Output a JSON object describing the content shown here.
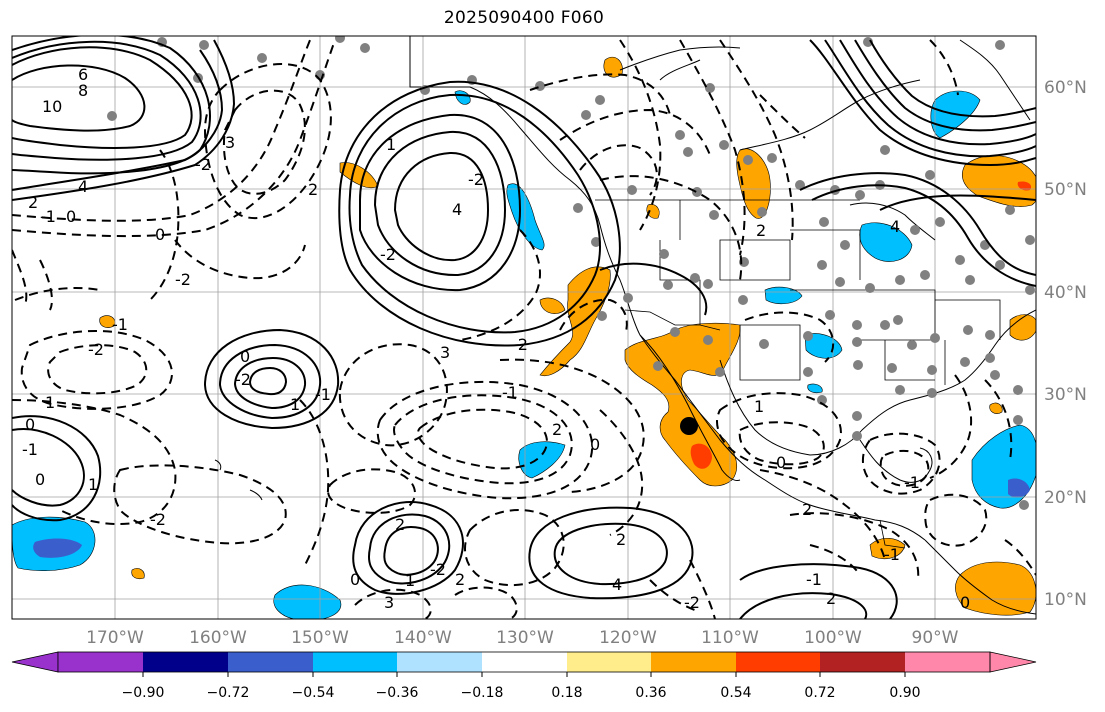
{
  "title": "2025090400 F060",
  "lat_labels": [
    "60°N",
    "50°N",
    "40°N",
    "30°N",
    "20°N",
    "10°N"
  ],
  "lon_labels": [
    "170°W",
    "160°W",
    "150°W",
    "140°W",
    "130°W",
    "120°W",
    "110°W",
    "100°W",
    "90°W"
  ],
  "colorbar": {
    "tick_labels": [
      "−0.90",
      "−0.72",
      "−0.54",
      "−0.36",
      "−0.18",
      "0.18",
      "0.36",
      "0.54",
      "0.72",
      "0.90"
    ],
    "colors": [
      "#9932cc",
      "#00008b",
      "#3a5fcd",
      "#00bfff",
      "#afe2ff",
      "#ffffff",
      "#ffec8b",
      "#ffa500",
      "#ff3d00",
      "#b22222",
      "#ff88aa"
    ]
  },
  "contour_labels": [
    "6",
    "8",
    "10",
    "4",
    "2",
    "-1",
    "0",
    "-2",
    "3",
    "-2",
    "2",
    "0",
    "4",
    "-2",
    "1",
    "-2",
    "3",
    "-2",
    "-1",
    "0",
    "2",
    "0",
    "-2",
    "1",
    "-1",
    "-2",
    "-1",
    "1",
    "0",
    "-1",
    "0",
    "1",
    "-2",
    "0",
    "2",
    "1",
    "-2",
    "2",
    "4",
    "3",
    "2",
    "-2",
    "-1",
    "2",
    "1",
    "0",
    "2",
    "-1",
    "0",
    "-1",
    "2",
    "4"
  ],
  "marker": {
    "lon": -114,
    "lat": 27
  }
}
